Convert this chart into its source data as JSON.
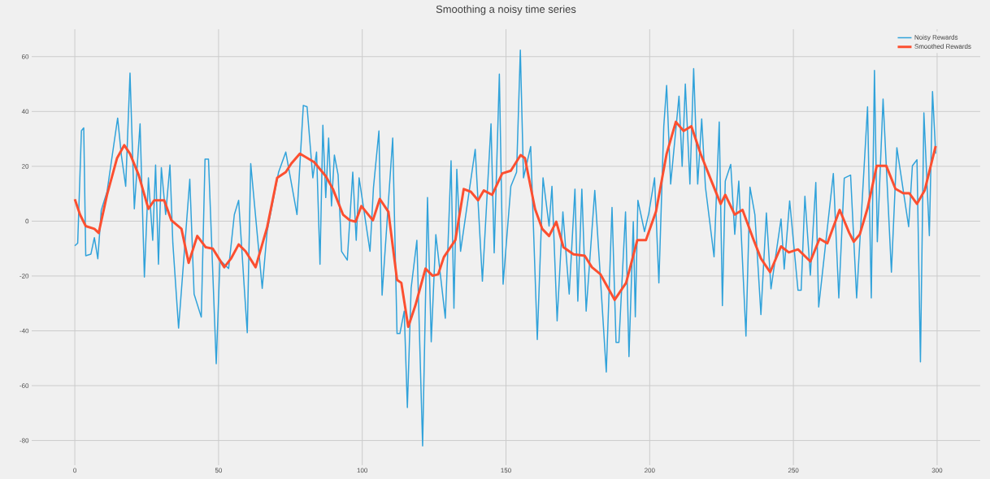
{
  "chart_data": {
    "type": "line",
    "title": "Smoothing a noisy time series",
    "xlim": [
      -15,
      315
    ],
    "ylim": [
      -89,
      70
    ],
    "xticks": [
      0,
      50,
      100,
      150,
      200,
      250,
      300
    ],
    "yticks": [
      -80,
      -60,
      -40,
      -20,
      0,
      20,
      40,
      60
    ],
    "grid": true,
    "legend": "top right",
    "marker": "none",
    "line_style": "solid",
    "series": [
      {
        "name": "Noisy Rewards",
        "color": "#30a2da",
        "x": [
          0,
          1,
          2.3,
          3.1,
          3.8,
          5.6,
          6.8,
          8,
          9.2,
          11.2,
          14.9,
          16.2,
          17.7,
          19.2,
          20.7,
          22.7,
          24.2,
          25.6,
          27.1,
          28.1,
          29.1,
          30.1,
          31.6,
          33.1,
          34.1,
          36.1,
          40,
          41.5,
          44,
          45.3,
          46.5,
          49.2,
          50.5,
          53.5,
          55.5,
          57,
          59,
          60,
          61.2,
          65.2,
          66.9,
          70.9,
          73.4,
          77.3,
          79.5,
          80.8,
          82.8,
          84.1,
          85.3,
          86.3,
          87.3,
          88.3,
          89.3,
          90.3,
          91.6,
          92.8,
          94.8,
          96.7,
          97.9,
          98.9,
          102.7,
          103.9,
          105.8,
          106.9,
          110.6,
          112.1,
          113.1,
          114.6,
          115.7,
          117,
          119,
          121,
          122.7,
          124,
          125.6,
          128.9,
          130.9,
          131.9,
          132.9,
          134.2,
          139.3,
          141.8,
          144.8,
          145.9,
          147.7,
          149,
          151.7,
          153.7,
          155,
          156.1,
          158.6,
          160.9,
          162.9,
          165,
          166,
          167.8,
          169.8,
          172,
          174,
          175,
          176.4,
          177.9,
          180.9,
          182.4,
          184.9,
          186.9,
          188.3,
          189.3,
          191.6,
          192.8,
          194.3,
          195,
          195.9,
          198.2,
          199.7,
          201.7,
          203.2,
          204.9,
          205.9,
          207.3,
          210.2,
          211.3,
          212.4,
          214,
          215.3,
          216.7,
          218.1,
          219.4,
          222.4,
          224.2,
          225.3,
          226.3,
          228.2,
          229.6,
          231,
          233.5,
          234.9,
          236.6,
          238.7,
          240.6,
          242.2,
          245.7,
          246.8,
          248.7,
          251.6,
          252.7,
          254,
          255.9,
          257.8,
          258.8,
          263.9,
          265.8,
          267.7,
          269.9,
          272,
          275.8,
          277.1,
          278.2,
          279.2,
          281.2,
          284.1,
          286,
          288.2,
          290.1,
          291.4,
          293,
          294.2,
          295.4,
          297.3,
          298.4,
          299.5
        ],
        "values": [
          -9,
          -8,
          33,
          34,
          -12.6,
          -12,
          -6,
          -13.7,
          4,
          10.7,
          37.6,
          24,
          12.7,
          54,
          4.5,
          35.5,
          -20.4,
          15.8,
          -7,
          20.5,
          -15.7,
          19.5,
          2.4,
          20.5,
          -8,
          -39,
          15.3,
          -26.6,
          -35,
          22.6,
          22.6,
          -52,
          -14.2,
          -17.3,
          2.4,
          7.6,
          -25,
          -40.7,
          21,
          -24.5,
          -3.8,
          17.9,
          25.2,
          2.4,
          42.2,
          41.7,
          15.8,
          25.2,
          -15.7,
          35,
          8.6,
          30.3,
          5.5,
          24.1,
          16.9,
          -11,
          -14.2,
          17.9,
          -7,
          15.8,
          -11,
          12.2,
          32.9,
          -27,
          30.3,
          -41,
          -41,
          -32.8,
          -68,
          -24.5,
          -7,
          -82,
          8.6,
          -44,
          -4.9,
          -35.4,
          22,
          -31.8,
          18.9,
          -11,
          26.2,
          -21.9,
          35.5,
          -11.6,
          53.6,
          -23,
          12.7,
          17.9,
          62.4,
          15.8,
          27.2,
          -43.2,
          15.8,
          -1.8,
          12.7,
          -36.4,
          3.4,
          -26.6,
          11.7,
          -29.2,
          11.7,
          -32.8,
          11.2,
          -13.1,
          -55,
          5,
          -44.2,
          -44.2,
          3.4,
          -49.4,
          -0.2,
          -34.9,
          7.6,
          -3.8,
          2.9,
          15.8,
          -22.5,
          34.5,
          49.5,
          13.5,
          45.6,
          20,
          50,
          13.5,
          55.6,
          13.5,
          37.3,
          12.4,
          -13,
          36.2,
          -30.8,
          14.6,
          20.7,
          -4.8,
          14.6,
          -41.9,
          12.4,
          2.4,
          -34.1,
          3,
          -24.7,
          0.8,
          -17.5,
          7.4,
          -25.2,
          -25.2,
          9.1,
          -19.7,
          14.1,
          -31.3,
          17.4,
          -28,
          15.7,
          16.8,
          -28,
          41.7,
          -28,
          55,
          -7.5,
          44.5,
          -18.6,
          26.8,
          11.3,
          -2,
          20.2,
          22.4,
          -51.3,
          39.5,
          -5.3,
          47.3,
          24.6
        ]
      },
      {
        "name": "Smoothed Rewards",
        "color": "#fc4f30",
        "x": [
          0,
          1.8,
          3.8,
          6.8,
          8.3,
          11.2,
          14.7,
          17.2,
          19.2,
          22.2,
          25.6,
          27.6,
          31.1,
          33.6,
          37.1,
          39.6,
          42.6,
          45.5,
          48,
          52,
          54.3,
          57,
          59.4,
          62.9,
          66.9,
          70.4,
          73.4,
          75.3,
          78.3,
          83.3,
          87.3,
          89.8,
          93.3,
          95.7,
          97.7,
          99.7,
          103.7,
          106.1,
          109.1,
          112.1,
          113.6,
          116,
          118.5,
          122,
          124.5,
          126.4,
          128.4,
          130.4,
          132.4,
          135.3,
          137.8,
          140.3,
          142.3,
          145.2,
          148.7,
          151.7,
          155.1,
          156.6,
          160.1,
          162.6,
          165,
          167.5,
          170,
          173.5,
          177.4,
          179.9,
          182.9,
          187.8,
          191.8,
          195.7,
          198.7,
          202.2,
          205.9,
          209.1,
          211.8,
          214.5,
          217.7,
          221.5,
          224.7,
          226.3,
          229.6,
          232.3,
          236,
          238.7,
          241.9,
          245.7,
          248.4,
          251.6,
          255.9,
          259.1,
          261.8,
          266.1,
          269.4,
          271,
          273.1,
          275.8,
          279,
          282.3,
          285.5,
          288.2,
          290.3,
          293,
          295.7,
          299.5
        ],
        "values": [
          8,
          2.4,
          -1.8,
          -2.8,
          -4.3,
          9.6,
          23,
          27.7,
          24.6,
          16.9,
          4.5,
          7.6,
          7.6,
          0.3,
          -2.8,
          -15.2,
          -5.4,
          -9.5,
          -10,
          -16.8,
          -13.7,
          -8.5,
          -11,
          -16.8,
          -2.3,
          15.8,
          17.9,
          21,
          24.6,
          21.5,
          16.4,
          11.7,
          2.4,
          0.3,
          -0.2,
          5.5,
          0.3,
          8.1,
          3.4,
          -21.4,
          -22.5,
          -38.5,
          -30.7,
          -17.3,
          -19.9,
          -19.4,
          -13.1,
          -10,
          -6.9,
          11.7,
          10.7,
          7.6,
          11.2,
          9.6,
          17.4,
          18.4,
          24.1,
          23,
          4.5,
          -2.8,
          -5.4,
          -0.2,
          -9.5,
          -12.1,
          -12.6,
          -16.8,
          -19.4,
          -28.7,
          -22.5,
          -6.9,
          -6.9,
          3.5,
          24.6,
          36.2,
          32.9,
          34.6,
          24.6,
          14.6,
          6.3,
          9.6,
          2.4,
          4.1,
          -6.4,
          -13.6,
          -18.6,
          -9.2,
          -11.4,
          -10.3,
          -14.7,
          -6.4,
          -8.1,
          4.1,
          -4.2,
          -7.5,
          -4.8,
          4.7,
          20.2,
          20.2,
          11.8,
          10.2,
          10.2,
          6.3,
          11.3,
          27.4
        ]
      }
    ]
  }
}
